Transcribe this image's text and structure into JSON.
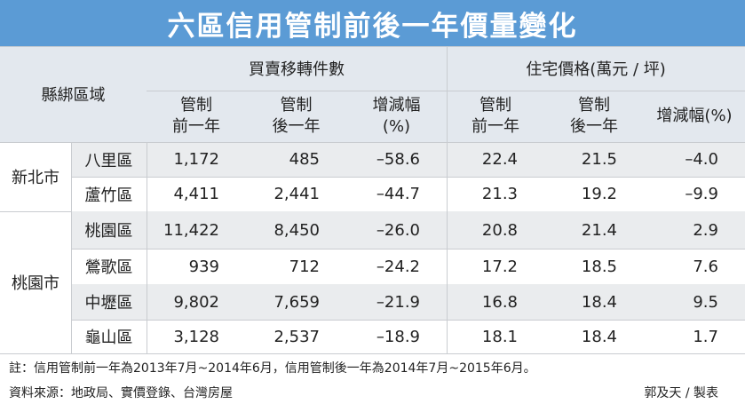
{
  "title": "六區信用管制前後一年價量變化",
  "table": {
    "region_header": "縣綁區域",
    "group_headers": [
      "買賣移轉件數",
      "住宅價格(萬元 / 坪)"
    ],
    "sub_headers": [
      "管制\n前一年",
      "管制\n後一年",
      "增減幅\n(%)",
      "管制\n前一年",
      "管制\n後一年",
      "增減幅(%)"
    ],
    "groups": [
      {
        "city": "新北市",
        "rows": [
          {
            "district": "八里區",
            "cells": [
              "1,172",
              "485",
              "–58.6",
              "22.4",
              "21.5",
              "–4.0"
            ]
          },
          {
            "district": "蘆竹區",
            "cells": [
              "4,411",
              "2,441",
              "–44.7",
              "21.3",
              "19.2",
              "–9.9"
            ]
          }
        ]
      },
      {
        "city": "桃園市",
        "rows": [
          {
            "district": "桃園區",
            "cells": [
              "11,422",
              "8,450",
              "–26.0",
              "20.8",
              "21.4",
              "2.9"
            ]
          },
          {
            "district": "鶯歌區",
            "cells": [
              "939",
              "712",
              "–24.2",
              "17.2",
              "18.5",
              "7.6"
            ]
          },
          {
            "district": "中壢區",
            "cells": [
              "9,802",
              "7,659",
              "–21.9",
              "16.8",
              "18.4",
              "9.5"
            ]
          },
          {
            "district": "龜山區",
            "cells": [
              "3,128",
              "2,537",
              "–18.9",
              "18.1",
              "18.4",
              "1.7"
            ]
          }
        ]
      }
    ]
  },
  "note": "註：信用管制前一年為2013年7月~2014年6月，信用管制後一年為2014年7月~2015年6月。",
  "source": "資料來源：地政局、實價登錄、台灣房屋",
  "credit": "郭及天 / 製表"
}
